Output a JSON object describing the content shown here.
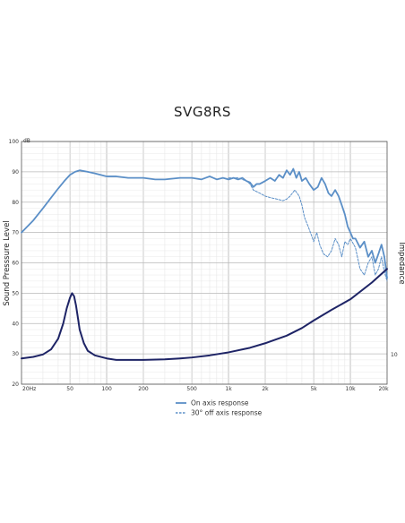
{
  "chart_data": {
    "type": "line",
    "title": "SVG8RS",
    "ylabel": "Sound Presssure Level",
    "y2label": "Impedance",
    "yunit": "dB",
    "xscale": "log",
    "xlim": [
      20,
      20000
    ],
    "ylim": [
      20,
      100
    ],
    "y_ticks": [
      20,
      30,
      40,
      50,
      60,
      70,
      80,
      90,
      100
    ],
    "y2_ticks": [
      {
        "value": 10,
        "label": "10"
      }
    ],
    "x_ticks": [
      {
        "value": 20,
        "label": "20Hz"
      },
      {
        "value": 50,
        "label": "50"
      },
      {
        "value": 100,
        "label": "100"
      },
      {
        "value": 200,
        "label": "200"
      },
      {
        "value": 500,
        "label": "500"
      },
      {
        "value": 1000,
        "label": "1k"
      },
      {
        "value": 2000,
        "label": "2k"
      },
      {
        "value": 5000,
        "label": "5k"
      },
      {
        "value": 10000,
        "label": "10k"
      },
      {
        "value": 20000,
        "label": "20k"
      }
    ],
    "grid": true,
    "legend_position": "bottom-center",
    "series": [
      {
        "name": "On axis response",
        "style": "solid",
        "color": "#5b8fc7",
        "x": [
          20,
          25,
          30,
          35,
          40,
          45,
          50,
          55,
          60,
          70,
          80,
          100,
          120,
          150,
          200,
          250,
          300,
          400,
          500,
          600,
          700,
          800,
          900,
          1000,
          1100,
          1200,
          1300,
          1400,
          1500,
          1600,
          1700,
          1800,
          2000,
          2200,
          2400,
          2600,
          2800,
          3000,
          3200,
          3400,
          3600,
          3800,
          4000,
          4300,
          4600,
          5000,
          5400,
          5800,
          6200,
          6600,
          7000,
          7500,
          8000,
          8500,
          9000,
          9500,
          10000,
          10500,
          11000,
          12000,
          13000,
          14000,
          15000,
          16000,
          17000,
          18000,
          19000,
          20000
        ],
        "values": [
          70,
          74,
          78,
          81.5,
          84.5,
          87,
          89,
          90,
          90.5,
          90,
          89.5,
          88.5,
          88.5,
          88,
          88,
          87.5,
          87.5,
          88,
          88,
          87.5,
          88.5,
          87.5,
          88,
          87.5,
          88,
          87.5,
          88,
          87,
          86.5,
          85,
          86,
          86,
          87,
          88,
          87,
          89,
          88,
          90.5,
          89,
          91,
          88,
          90,
          87,
          88,
          86,
          84,
          85,
          88,
          86,
          83,
          82,
          84,
          82,
          79,
          76,
          72,
          70,
          68,
          68,
          65,
          67,
          62,
          64,
          60,
          63,
          66,
          62,
          55
        ]
      },
      {
        "name": "30° off axis response",
        "style": "dashed",
        "color": "#5b8fc7",
        "x": [
          1000,
          1200,
          1400,
          1500,
          1600,
          1800,
          2000,
          2200,
          2500,
          2800,
          3000,
          3200,
          3500,
          3800,
          4000,
          4200,
          4500,
          4800,
          5000,
          5300,
          5600,
          6000,
          6500,
          7000,
          7500,
          8000,
          8500,
          9000,
          9500,
          10000,
          11000,
          12000,
          13000,
          14000,
          15000,
          16000,
          17000,
          18000,
          19000,
          20000
        ],
        "values": [
          88,
          88,
          87,
          86,
          84,
          83,
          82,
          81.5,
          81,
          80.5,
          81,
          82,
          84,
          82,
          79,
          75,
          72,
          69,
          67,
          70,
          66,
          63,
          62,
          64,
          68,
          66,
          62,
          67,
          66,
          68,
          65,
          58,
          56,
          60,
          62,
          56,
          58,
          62,
          57,
          54
        ]
      },
      {
        "name": "",
        "style": "solid-bold",
        "color": "#1e2466",
        "x": [
          20,
          25,
          30,
          35,
          40,
          44,
          47,
          50,
          52,
          54,
          56,
          58,
          60,
          65,
          70,
          80,
          100,
          120,
          150,
          200,
          300,
          400,
          500,
          700,
          1000,
          1500,
          2000,
          3000,
          4000,
          5000,
          7000,
          10000,
          15000,
          20000
        ],
        "values": [
          28.5,
          29,
          29.8,
          31.5,
          35,
          40,
          45,
          48.5,
          50,
          49,
          46,
          42,
          38,
          33.5,
          31,
          29.5,
          28.5,
          28,
          28,
          28,
          28.2,
          28.5,
          28.8,
          29.5,
          30.5,
          32,
          33.5,
          36,
          38.5,
          41,
          44.5,
          48,
          53.5,
          58
        ]
      }
    ]
  }
}
